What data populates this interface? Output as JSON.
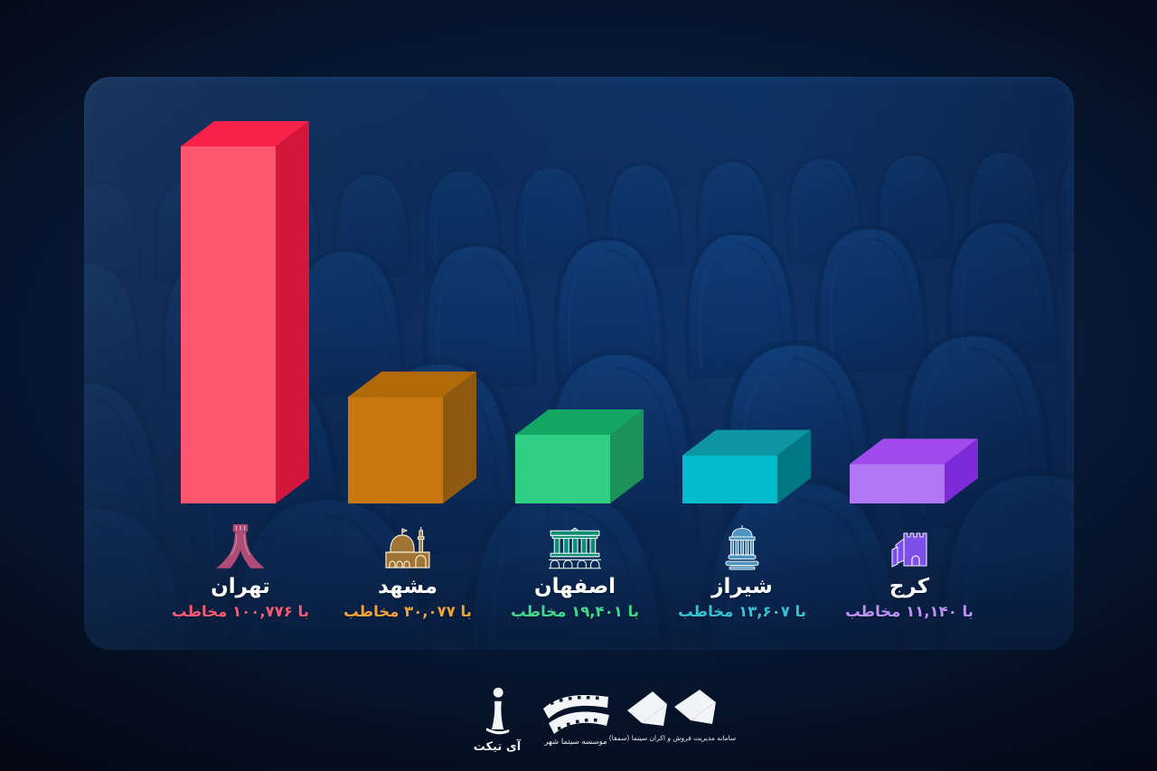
{
  "chart_data": {
    "type": "bar",
    "title": "",
    "description_note": "3D bar chart of cinema audience by city",
    "unit_label": "مخاطب",
    "with_label": "با",
    "categories": [
      "تهران",
      "مشهد",
      "اصفهان",
      "شیراز",
      "کرج"
    ],
    "series": [
      {
        "name": "مخاطب",
        "values": [
          100776,
          30077,
          19401,
          13607,
          11140
        ]
      }
    ],
    "ylim": [
      0,
      100776
    ],
    "grid": false,
    "legend": false,
    "cities": [
      {
        "slug": "tehran",
        "name": "تهران",
        "value": 100776,
        "count_display": "با ۱۰۰,۷۷۶ مخاطب",
        "icon": "azadi-tower-icon",
        "bar_front": "#fd5670",
        "bar_top": "#f8214a",
        "bar_side": "#d3163c",
        "text_color": "#fa5a74"
      },
      {
        "slug": "mashhad",
        "name": "مشهد",
        "value": 30077,
        "count_display": "با ۳۰,۰۷۷ مخاطب",
        "icon": "imam-reza-shrine-icon",
        "bar_front": "#c8780e",
        "bar_top": "#b26a07",
        "bar_side": "#8f5a10",
        "text_color": "#f2a33c"
      },
      {
        "slug": "isfahan",
        "name": "اصفهان",
        "value": 19401,
        "count_display": "با ۱۹,۴۰۱ مخاطب",
        "icon": "chehel-sotoun-bridge-icon",
        "bar_front": "#2fd084",
        "bar_top": "#12a765",
        "bar_side": "#1c9158",
        "text_color": "#41d98e"
      },
      {
        "slug": "shiraz",
        "name": "شیراز",
        "value": 13607,
        "count_display": "با ۱۳,۶۰۷ مخاطب",
        "icon": "hafez-tomb-icon",
        "bar_front": "#00bbcd",
        "bar_top": "#0d95a2",
        "bar_side": "#007884",
        "text_color": "#35c4d6"
      },
      {
        "slug": "karaj",
        "name": "کرج",
        "value": 11140,
        "count_display": "با ۱۱,۱۴۰ مخاطب",
        "icon": "karaj-fort-icon",
        "bar_front": "#b277f3",
        "bar_top": "#a14bef",
        "bar_side": "#7d2bd8",
        "text_color": "#bb93f5"
      }
    ]
  },
  "footer": {
    "iticket_label": "آی تیکت",
    "cinema_shahr_label": "موسسه سینما شهر",
    "samfa_label": "سامانه مدیریت فروش و اکران سینما (سمفا)"
  }
}
